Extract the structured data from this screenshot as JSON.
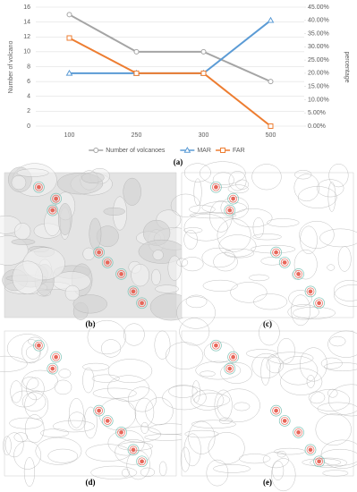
{
  "chart_data": {
    "type": "line",
    "categories": [
      "100",
      "250",
      "300",
      "500"
    ],
    "ylabel": "Number of volcano",
    "y2label": "percentage",
    "ylim": [
      0,
      16
    ],
    "yticks": [
      0,
      2,
      4,
      6,
      8,
      10,
      12,
      14,
      16
    ],
    "y2lim": [
      0,
      45
    ],
    "y2ticks": [
      {
        "value": 0,
        "label": "0.00%"
      },
      {
        "value": 5,
        "label": "5.00%"
      },
      {
        "value": 10,
        "label": "10.00%"
      },
      {
        "value": 15,
        "label": "15.00%"
      },
      {
        "value": 20,
        "label": "20.00%"
      },
      {
        "value": 25,
        "label": "25.00%"
      },
      {
        "value": 30,
        "label": "30.00%"
      },
      {
        "value": 35,
        "label": "35.00%"
      },
      {
        "value": 40,
        "label": "40.00%"
      },
      {
        "value": 45,
        "label": "45.00%"
      }
    ],
    "grid": true,
    "legend": "bottom",
    "series": [
      {
        "name": "Number of volcanoes",
        "color": "#a5a5a5",
        "marker": "circle",
        "values": [
          15,
          10,
          10,
          6
        ]
      },
      {
        "name": "MAR",
        "color": "#5b9bd5",
        "marker": "triangle",
        "axis": "y2",
        "values": [
          20,
          20,
          20,
          40
        ]
      },
      {
        "name": "FAR",
        "color": "#ed7d31",
        "marker": "square",
        "axis": "y2",
        "values": [
          33.33,
          20,
          20,
          0
        ]
      }
    ],
    "caption": "(a)"
  },
  "panels": [
    {
      "label": "(b)"
    },
    {
      "label": "(c)"
    },
    {
      "label": "(d)"
    },
    {
      "label": "(e)"
    }
  ]
}
